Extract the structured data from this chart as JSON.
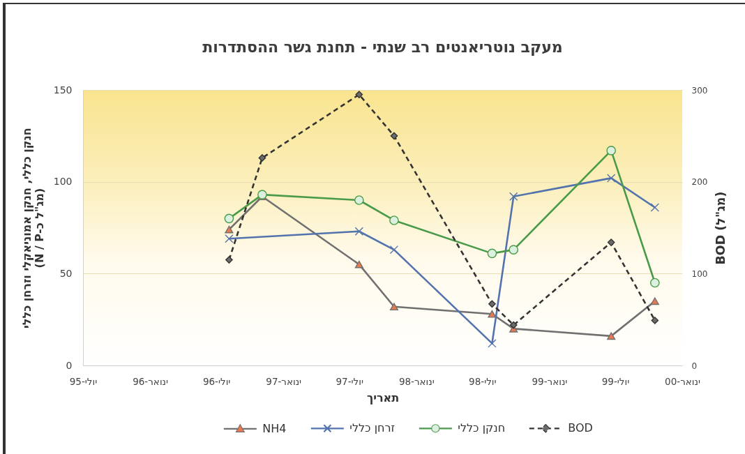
{
  "chart_data": {
    "type": "line",
    "title": "מעקב נוטריאנטים רב שנתי - תחנת גשר ההסתדרות",
    "xlabel": "תאריך",
    "ylabel": "חנקן כללי, חנקן אמוניאקלי וזרחן כללי\n(מג\"ל כ-N / P)",
    "y2label": "BOD (מג\"ל)",
    "x": [
      "1996-08-05",
      "1996-11-04",
      "1997-07-28",
      "1997-11-01",
      "1998-07-28",
      "1998-09-25",
      "1999-06-20",
      "1999-10-18"
    ],
    "xlim": [
      "1995-07-01",
      "2000-01-01"
    ],
    "xticks": [
      {
        "value": "1995-07",
        "label": "יולי-95"
      },
      {
        "value": "1996-01",
        "label": "ינואר-96"
      },
      {
        "value": "1996-07",
        "label": "יולי-96"
      },
      {
        "value": "1997-01",
        "label": "ינואר-97"
      },
      {
        "value": "1997-07",
        "label": "יולי-97"
      },
      {
        "value": "1998-01",
        "label": "ינואר-98"
      },
      {
        "value": "1998-07",
        "label": "יולי-98"
      },
      {
        "value": "1999-01",
        "label": "ינואר-99"
      },
      {
        "value": "1999-07",
        "label": "יולי-99"
      },
      {
        "value": "2000-01",
        "label": "ינואר-00"
      }
    ],
    "ylim": [
      0,
      150
    ],
    "yticks": [
      0,
      50,
      100,
      150
    ],
    "y2lim": [
      0,
      300
    ],
    "y2ticks": [
      0,
      100,
      200,
      300
    ],
    "grid": "y",
    "legend": "bottom",
    "line_style": "solid",
    "series": [
      {
        "name": "NH4",
        "color": "#707070",
        "colors": [
          "#e8784f",
          "#e8784f",
          "#e8784f",
          "#e8784f",
          "#e8784f",
          "#e8784f",
          "#e8784f",
          "#e8784f"
        ],
        "marker": "triangle",
        "values": [
          74,
          92,
          55,
          32,
          28,
          20,
          16,
          35
        ]
      },
      {
        "name": "זרחן כללי",
        "color": "#5273ad",
        "marker": "cross",
        "x": [
          "1996-08-05",
          "1997-07-28",
          "1997-11-01",
          "1998-07-28",
          "1998-09-25",
          "1999-06-20",
          "1999-10-18"
        ],
        "values": [
          69,
          73,
          63,
          12,
          92,
          102,
          86
        ]
      },
      {
        "name": "חנקן כללי",
        "color": "#4a9a4a",
        "colors": [
          "#dbf0df",
          "#dbf0df",
          "#dbf0df",
          "#dbf0df",
          "#dbf0df",
          "#dbf0df",
          "#dbf0df",
          "#dbf0df"
        ],
        "marker": "circle",
        "values": [
          80,
          93,
          90,
          79,
          61,
          63,
          117,
          45
        ]
      },
      {
        "name": "BOD",
        "color": "#333333",
        "colors": [
          "#6b6b6b",
          "#6b6b6b",
          "#6b6b6b",
          "#6b6b6b",
          "#6b6b6b",
          "#6b6b6b",
          "#6b6b6b",
          "#6b6b6b"
        ],
        "marker": "diamond",
        "line_style": "dashed",
        "axis": "y2",
        "values": [
          115,
          226,
          295,
          250,
          67,
          44,
          134,
          49
        ]
      }
    ]
  }
}
